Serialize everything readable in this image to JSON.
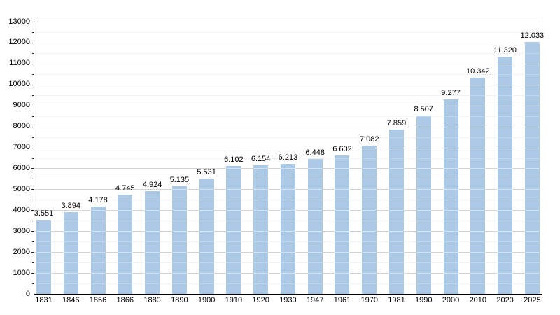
{
  "chart_data": {
    "type": "bar",
    "title": "",
    "xlabel": "",
    "ylabel": "",
    "categories": [
      "1831",
      "1846",
      "1856",
      "1866",
      "1880",
      "1890",
      "1900",
      "1910",
      "1920",
      "1930",
      "1947",
      "1961",
      "1970",
      "1981",
      "1990",
      "2000",
      "2010",
      "2020",
      "2025"
    ],
    "values": [
      3551,
      3894,
      4178,
      4745,
      4924,
      5135,
      5531,
      6102,
      6154,
      6213,
      6448,
      6602,
      7082,
      7859,
      8507,
      9277,
      10342,
      11320,
      12033
    ],
    "value_labels": [
      "3.551",
      "3.894",
      "4.178",
      "4.745",
      "4.924",
      "5.135",
      "5.531",
      "6.102",
      "6.154",
      "6.213",
      "6.448",
      "6.602",
      "7.082",
      "7.859",
      "8.507",
      "9.277",
      "10.342",
      "11.320",
      "12.033"
    ],
    "ylim": [
      0,
      13000
    ],
    "y_major_step": 1000,
    "y_minor_step": 500,
    "y_tick_labels": [
      "0",
      "1000",
      "2000",
      "3000",
      "4000",
      "5000",
      "6000",
      "7000",
      "8000",
      "9000",
      "10000",
      "11000",
      "12000",
      "13000"
    ],
    "grid": "on",
    "legend": "none",
    "colors": {
      "bar": "#ABC8E4",
      "major_grid": "#A6A6A6",
      "minor_grid": "#EDEDED",
      "axis": "#000000",
      "text": "#000000",
      "background": "#FFFFFF"
    }
  }
}
